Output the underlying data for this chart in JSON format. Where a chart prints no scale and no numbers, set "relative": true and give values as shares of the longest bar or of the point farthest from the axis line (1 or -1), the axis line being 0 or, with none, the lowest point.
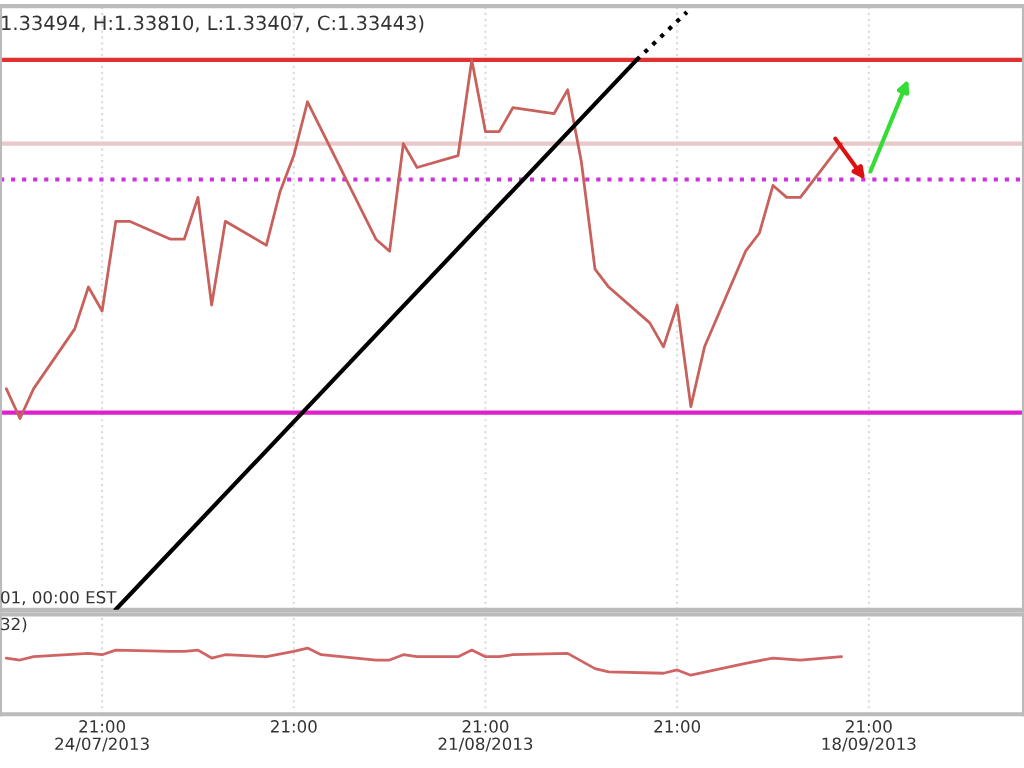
{
  "chart_data": [
    {
      "type": "line",
      "title": "1.33494, H:1.33810, L:1.33407, C:1.33443)",
      "relative": true,
      "legend": false,
      "grid": "x",
      "tick_labels": false,
      "annotations": [
        "01, 00:00 EST"
      ],
      "xlim": [
        "2013-07-17T10:00",
        "2013-09-30T05:00"
      ],
      "xticks": [
        {
          "value": "2013-07-24T21:00",
          "label": null
        },
        {
          "value": "2013-08-07T21:00",
          "label": null
        },
        {
          "value": "2013-08-21T21:00",
          "label": null
        },
        {
          "value": "2013-09-04T21:00",
          "label": null
        },
        {
          "value": "2013-09-18T21:00",
          "label": null
        }
      ],
      "series": [
        {
          "color": "#c8605c",
          "line_style": "solid",
          "x": [
            "2013-07-17T21:00",
            "2013-07-18T21:00",
            "2013-07-19T21:00",
            "2013-07-22T21:00",
            "2013-07-23T21:00",
            "2013-07-24T21:00",
            "2013-07-25T21:00",
            "2013-07-26T21:00",
            "2013-07-29T21:00",
            "2013-07-30T21:00",
            "2013-07-31T21:00",
            "2013-08-01T21:00",
            "2013-08-02T21:00",
            "2013-08-05T21:00",
            "2013-08-06T21:00",
            "2013-08-07T21:00",
            "2013-08-08T21:00",
            "2013-08-13T21:00",
            "2013-08-14T21:00",
            "2013-08-15T21:00",
            "2013-08-16T21:00",
            "2013-08-19T21:00",
            "2013-08-20T21:00",
            "2013-08-21T21:00",
            "2013-08-22T21:00",
            "2013-08-23T21:00",
            "2013-08-26T21:00",
            "2013-08-27T21:00",
            "2013-08-28T21:00",
            "2013-08-29T21:00",
            "2013-08-30T21:00",
            "2013-09-02T21:00",
            "2013-09-03T21:00",
            "2013-09-04T21:00",
            "2013-09-05T21:00",
            "2013-09-06T21:00",
            "2013-09-09T21:00",
            "2013-09-10T21:00",
            "2013-09-11T21:00",
            "2013-09-12T21:00",
            "2013-09-13T21:00",
            "2013-09-16T21:00"
          ],
          "values": [
            0.37,
            0.32,
            0.37,
            0.47,
            0.54,
            0.5,
            0.65,
            0.65,
            0.62,
            0.62,
            0.69,
            0.51,
            0.65,
            0.61,
            0.7,
            0.76,
            0.85,
            0.62,
            0.6,
            0.78,
            0.74,
            0.76,
            0.92,
            0.8,
            0.8,
            0.84,
            0.83,
            0.87,
            0.75,
            0.57,
            0.54,
            0.48,
            0.44,
            0.51,
            0.34,
            0.44,
            0.6,
            0.63,
            0.71,
            0.69,
            0.69,
            0.78
          ]
        },
        {
          "color": "#000000",
          "line_style": "solid",
          "x": [
            "2013-07-25T20:30",
            "2013-09-01T22:00"
          ],
          "values": [
            0,
            0.92
          ]
        },
        {
          "color": "#000000",
          "line_style": "dotted",
          "x": [
            "2013-09-01T22:00",
            "2013-09-05T14:00"
          ],
          "values": [
            0.92,
            1.0
          ]
        }
      ],
      "ref_lines": [
        {
          "axis": "y",
          "value": 0.92,
          "color": "#e03030",
          "line_style": "solid"
        },
        {
          "axis": "y",
          "value": 0.78,
          "color": "#e8c8c8",
          "line_style": "solid"
        },
        {
          "axis": "y",
          "value": 0.72,
          "color": "#cc33dd",
          "line_style": "dotted"
        },
        {
          "axis": "y",
          "value": 0.33,
          "color": "#dd22cc",
          "line_style": "solid"
        }
      ]
    },
    {
      "type": "line",
      "relative": true,
      "legend": false,
      "grid": "x",
      "tick_labels": "x",
      "annotations": [
        "32)"
      ],
      "xlim": [
        "2013-07-17T10:00",
        "2013-09-30T05:00"
      ],
      "xticks": [
        {
          "value": "2013-07-24T21:00",
          "label": "21:00\n24/07/2013"
        },
        {
          "value": "2013-08-07T21:00",
          "label": "21:00"
        },
        {
          "value": "2013-08-21T21:00",
          "label": "21:00\n21/08/2013"
        },
        {
          "value": "2013-09-04T21:00",
          "label": "21:00"
        },
        {
          "value": "2013-09-18T21:00",
          "label": "21:00\n18/09/2013"
        }
      ],
      "series": [
        {
          "color": "#d06464",
          "line_style": "solid",
          "x": [
            "2013-07-17T21:00",
            "2013-07-18T21:00",
            "2013-07-19T21:00",
            "2013-07-23T21:00",
            "2013-07-24T21:00",
            "2013-07-25T21:00",
            "2013-07-29T21:00",
            "2013-07-30T21:00",
            "2013-07-31T21:00",
            "2013-08-01T21:00",
            "2013-08-02T21:00",
            "2013-08-05T21:00",
            "2013-08-07T21:00",
            "2013-08-08T21:00",
            "2013-08-09T21:00",
            "2013-08-13T21:00",
            "2013-08-14T21:00",
            "2013-08-15T21:00",
            "2013-08-16T21:00",
            "2013-08-19T21:00",
            "2013-08-20T21:00",
            "2013-08-21T21:00",
            "2013-08-22T21:00",
            "2013-08-23T21:00",
            "2013-08-27T21:00",
            "2013-08-29T21:00",
            "2013-08-30T21:00",
            "2013-09-03T21:00",
            "2013-09-04T21:00",
            "2013-09-05T21:00",
            "2013-09-09T21:00",
            "2013-09-11T21:00",
            "2013-09-13T21:00",
            "2013-09-16T21:00"
          ],
          "values": [
            0.85,
            0.82,
            0.87,
            0.92,
            0.9,
            0.97,
            0.95,
            0.95,
            0.97,
            0.85,
            0.9,
            0.87,
            0.95,
            1,
            0.9,
            0.82,
            0.82,
            0.9,
            0.87,
            0.87,
            0.97,
            0.87,
            0.87,
            0.9,
            0.92,
            0.69,
            0.64,
            0.62,
            0.67,
            0.59,
            0.77,
            0.85,
            0.82,
            0.87
          ]
        }
      ]
    }
  ]
}
